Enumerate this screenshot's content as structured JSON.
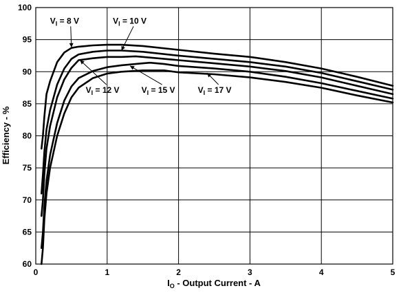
{
  "chart_data": {
    "type": "line",
    "title": "",
    "xlabel_main": "I",
    "xlabel_sub": "O",
    "xlabel_rest": " - Output Current - A",
    "ylabel": "Efficiency - %",
    "xlim": [
      0,
      5
    ],
    "ylim": [
      60,
      100
    ],
    "xticks": [
      "0",
      "1",
      "2",
      "3",
      "4",
      "5"
    ],
    "yticks": [
      "60",
      "65",
      "70",
      "75",
      "80",
      "85",
      "90",
      "95",
      "100"
    ],
    "grid": true,
    "series": [
      {
        "name_main": "V",
        "name_sub": "I",
        "name_rest": " = 8 V",
        "points": [
          [
            0.08,
            78
          ],
          [
            0.1,
            80
          ],
          [
            0.12,
            83
          ],
          [
            0.15,
            86.5
          ],
          [
            0.2,
            88.5
          ],
          [
            0.3,
            91.5
          ],
          [
            0.4,
            93
          ],
          [
            0.5,
            93.7
          ],
          [
            0.6,
            93.9
          ],
          [
            0.8,
            94.1
          ],
          [
            1.0,
            94.2
          ],
          [
            1.2,
            94.2
          ],
          [
            1.5,
            94
          ],
          [
            2.0,
            93.4
          ],
          [
            2.5,
            92.8
          ],
          [
            3.0,
            92.3
          ],
          [
            3.5,
            91.5
          ],
          [
            4.0,
            90.5
          ],
          [
            4.5,
            89.2
          ],
          [
            5.0,
            87.8
          ]
        ]
      },
      {
        "name_main": "V",
        "name_sub": "I",
        "name_rest": " = 10 V",
        "points": [
          [
            0.08,
            71
          ],
          [
            0.1,
            74
          ],
          [
            0.12,
            77.5
          ],
          [
            0.15,
            81
          ],
          [
            0.2,
            84
          ],
          [
            0.3,
            88
          ],
          [
            0.4,
            90.5
          ],
          [
            0.5,
            92
          ],
          [
            0.6,
            92.7
          ],
          [
            0.8,
            93.1
          ],
          [
            1.0,
            93.3
          ],
          [
            1.2,
            93.3
          ],
          [
            1.5,
            93.1
          ],
          [
            2.0,
            92.5
          ],
          [
            2.5,
            92
          ],
          [
            3.0,
            91.5
          ],
          [
            3.5,
            90.8
          ],
          [
            4.0,
            89.8
          ],
          [
            4.5,
            88.5
          ],
          [
            5.0,
            87.2
          ]
        ]
      },
      {
        "name_main": "V",
        "name_sub": "I",
        "name_rest": " = 12 V",
        "points": [
          [
            0.08,
            67.5
          ],
          [
            0.1,
            70
          ],
          [
            0.12,
            74
          ],
          [
            0.15,
            78
          ],
          [
            0.2,
            81.5
          ],
          [
            0.3,
            86
          ],
          [
            0.4,
            88.8
          ],
          [
            0.5,
            90.6
          ],
          [
            0.6,
            91.8
          ],
          [
            0.8,
            92.1
          ],
          [
            1.0,
            92.3
          ],
          [
            1.2,
            92.3
          ],
          [
            1.4,
            92.4
          ],
          [
            1.5,
            92.3
          ],
          [
            2.0,
            91.8
          ],
          [
            2.5,
            91.3
          ],
          [
            3.0,
            90.8
          ],
          [
            3.5,
            90.1
          ],
          [
            4.0,
            89.1
          ],
          [
            4.5,
            87.8
          ],
          [
            5.0,
            86.5
          ]
        ]
      },
      {
        "name_main": "V",
        "name_sub": "I",
        "name_rest": " = 15 V",
        "points": [
          [
            0.08,
            62.5
          ],
          [
            0.1,
            65
          ],
          [
            0.12,
            69
          ],
          [
            0.15,
            73
          ],
          [
            0.2,
            77
          ],
          [
            0.3,
            82
          ],
          [
            0.4,
            85.5
          ],
          [
            0.5,
            87.7
          ],
          [
            0.6,
            89
          ],
          [
            0.8,
            90.1
          ],
          [
            1.0,
            90.7
          ],
          [
            1.2,
            91
          ],
          [
            1.5,
            91.3
          ],
          [
            1.6,
            91.4
          ],
          [
            1.8,
            91.2
          ],
          [
            2.0,
            90.9
          ],
          [
            2.5,
            90.5
          ],
          [
            3.0,
            90
          ],
          [
            3.5,
            89.2
          ],
          [
            4.0,
            88.2
          ],
          [
            4.5,
            87
          ],
          [
            5.0,
            85.8
          ]
        ]
      },
      {
        "name_main": "V",
        "name_sub": "I",
        "name_rest": " = 17 V",
        "points": [
          [
            0.08,
            60
          ],
          [
            0.1,
            62.5
          ],
          [
            0.12,
            67
          ],
          [
            0.15,
            71
          ],
          [
            0.2,
            75
          ],
          [
            0.3,
            80
          ],
          [
            0.4,
            83.5
          ],
          [
            0.5,
            86
          ],
          [
            0.6,
            87.5
          ],
          [
            0.8,
            89
          ],
          [
            1.0,
            89.7
          ],
          [
            1.2,
            90
          ],
          [
            1.5,
            90.2
          ],
          [
            1.8,
            90.2
          ],
          [
            2.0,
            89.9
          ],
          [
            2.5,
            89.6
          ],
          [
            3.0,
            89.1
          ],
          [
            3.5,
            88.4
          ],
          [
            4.0,
            87.5
          ],
          [
            4.5,
            86.3
          ],
          [
            5.0,
            85.2
          ]
        ]
      }
    ],
    "annotations": [
      {
        "series": 0,
        "text_main": "V",
        "text_sub": "I",
        "text_rest": " = 8 V",
        "label_at": [
          0.2,
          97.5
        ],
        "arrow_to": [
          0.5,
          93.8
        ]
      },
      {
        "series": 1,
        "text_main": "V",
        "text_sub": "I",
        "text_rest": " = 10 V",
        "label_at": [
          1.08,
          97.5
        ],
        "arrow_to": [
          1.2,
          93.3
        ]
      },
      {
        "series": 2,
        "text_main": "V",
        "text_sub": "I",
        "text_rest": " = 12 V",
        "label_at": [
          0.7,
          86.7
        ],
        "arrow_to": [
          0.62,
          91.8
        ]
      },
      {
        "series": 3,
        "text_main": "V",
        "text_sub": "I",
        "text_rest": " = 15 V",
        "label_at": [
          1.48,
          86.7
        ],
        "arrow_to": [
          1.32,
          90.9
        ]
      },
      {
        "series": 4,
        "text_main": "V",
        "text_sub": "I",
        "text_rest": " = 17 V",
        "label_at": [
          2.27,
          86.7
        ],
        "arrow_to": [
          2.4,
          89.8
        ]
      }
    ]
  }
}
